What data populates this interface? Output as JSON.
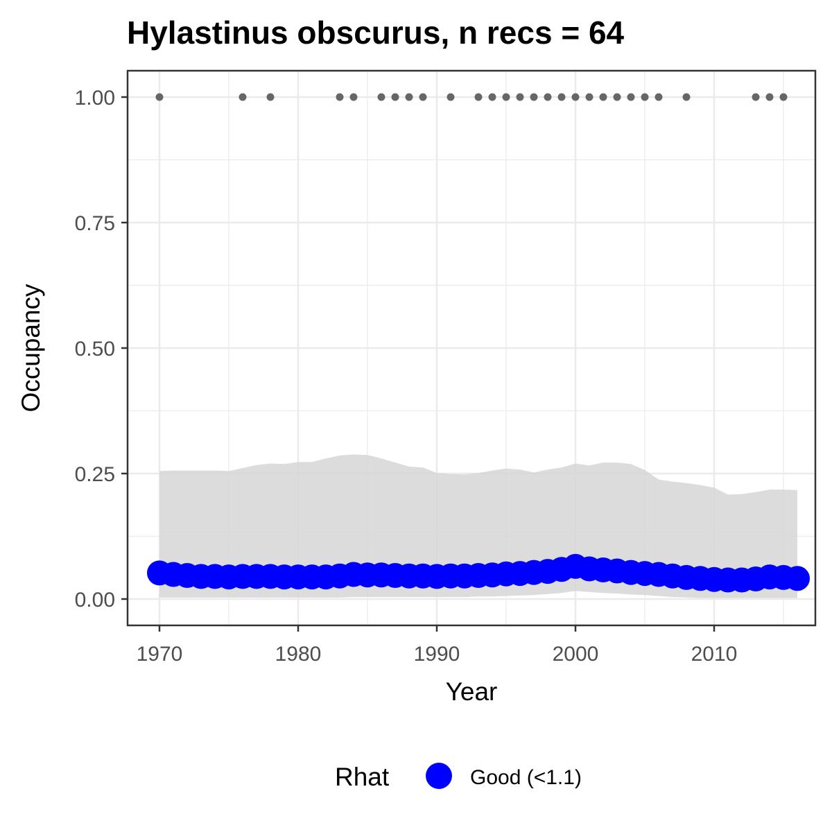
{
  "chart_data": {
    "type": "line",
    "title": "Hylastinus obscurus, n recs = 64",
    "xlabel": "Year",
    "ylabel": "Occupancy",
    "xlim": [
      1967.7,
      2017.3
    ],
    "ylim": [
      -0.0525,
      1.0525
    ],
    "x_ticks": [
      1970,
      1980,
      1990,
      2000,
      2010
    ],
    "x_tick_labels": [
      "1970",
      "1980",
      "1990",
      "2000",
      "2010"
    ],
    "y_ticks": [
      0,
      0.25,
      0.5,
      0.75,
      1
    ],
    "y_tick_labels": [
      "0.00",
      "0.25",
      "0.50",
      "0.75",
      "1.00"
    ],
    "grid": true,
    "legend": {
      "position": "bottom",
      "title": "Rhat",
      "items": [
        {
          "label": "Good (<1.1)",
          "color": "#0000ff"
        }
      ]
    },
    "colors": {
      "mean": "#0000ff",
      "ribbon": "#d6d6d6",
      "records": "#666666",
      "panel_border": "#333333",
      "grid": "#ebebeb"
    },
    "series": [
      {
        "name": "Good (<1.1)",
        "x": [
          1970,
          1971,
          1972,
          1973,
          1974,
          1975,
          1976,
          1977,
          1978,
          1979,
          1980,
          1981,
          1982,
          1983,
          1984,
          1985,
          1986,
          1987,
          1988,
          1989,
          1990,
          1991,
          1992,
          1993,
          1994,
          1995,
          1996,
          1997,
          1998,
          1999,
          2000,
          2001,
          2002,
          2003,
          2004,
          2005,
          2006,
          2007,
          2008,
          2009,
          2010,
          2011,
          2012,
          2013,
          2014,
          2015,
          2016
        ],
        "y": [
          0.052,
          0.049,
          0.047,
          0.045,
          0.045,
          0.044,
          0.045,
          0.045,
          0.045,
          0.044,
          0.044,
          0.044,
          0.044,
          0.046,
          0.049,
          0.048,
          0.048,
          0.047,
          0.046,
          0.046,
          0.045,
          0.046,
          0.046,
          0.047,
          0.048,
          0.05,
          0.051,
          0.053,
          0.055,
          0.059,
          0.065,
          0.06,
          0.058,
          0.056,
          0.053,
          0.051,
          0.049,
          0.046,
          0.043,
          0.041,
          0.039,
          0.038,
          0.038,
          0.04,
          0.044,
          0.043,
          0.041
        ]
      }
    ],
    "ribbon": {
      "x": [
        1970,
        1971,
        1972,
        1973,
        1974,
        1975,
        1976,
        1977,
        1978,
        1979,
        1980,
        1981,
        1982,
        1983,
        1984,
        1985,
        1986,
        1987,
        1988,
        1989,
        1990,
        1991,
        1992,
        1993,
        1994,
        1995,
        1996,
        1997,
        1998,
        1999,
        2000,
        2001,
        2002,
        2003,
        2004,
        2005,
        2006,
        2007,
        2008,
        2009,
        2010,
        2011,
        2012,
        2013,
        2014,
        2015,
        2016
      ],
      "upper": [
        0.255,
        0.256,
        0.256,
        0.256,
        0.256,
        0.255,
        0.261,
        0.267,
        0.27,
        0.269,
        0.273,
        0.273,
        0.28,
        0.286,
        0.288,
        0.287,
        0.28,
        0.272,
        0.264,
        0.262,
        0.251,
        0.249,
        0.248,
        0.251,
        0.256,
        0.26,
        0.258,
        0.252,
        0.258,
        0.262,
        0.27,
        0.266,
        0.272,
        0.272,
        0.269,
        0.257,
        0.238,
        0.234,
        0.231,
        0.227,
        0.222,
        0.208,
        0.209,
        0.213,
        0.218,
        0.218,
        0.217
      ],
      "lower": [
        0.003,
        0.003,
        0.003,
        0.003,
        0.003,
        0.003,
        0.003,
        0.003,
        0.003,
        0.003,
        0.003,
        0.003,
        0.003,
        0.003,
        0.004,
        0.004,
        0.004,
        0.004,
        0.004,
        0.004,
        0.004,
        0.004,
        0.004,
        0.005,
        0.005,
        0.006,
        0.007,
        0.008,
        0.01,
        0.012,
        0.016,
        0.014,
        0.012,
        0.011,
        0.009,
        0.008,
        0.006,
        0.004,
        0.003,
        0.002,
        0.002,
        0.002,
        0.002,
        0.002,
        0.002,
        0.002,
        0.002
      ]
    },
    "records": {
      "y": 1.0,
      "years": [
        1970,
        1976,
        1978,
        1983,
        1984,
        1986,
        1987,
        1988,
        1989,
        1991,
        1993,
        1994,
        1995,
        1996,
        1997,
        1998,
        1999,
        2000,
        2001,
        2002,
        2003,
        2004,
        2005,
        2006,
        2008,
        2013,
        2014,
        2015
      ]
    }
  }
}
